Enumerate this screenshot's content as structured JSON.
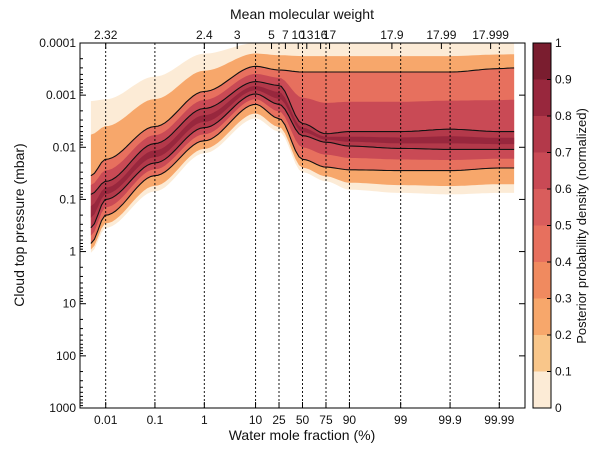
{
  "chart_data": {
    "type": "heatmap",
    "xlabel": "Water mole fraction (%)",
    "x2label": "Mean molecular weight",
    "ylabel": "Cloud top pressure (mbar)",
    "colorbar_label": "Posterior probability density (normalized)",
    "x_scale": "logit",
    "y_scale": "log",
    "y_inverted": true,
    "xlim": [
      0.003,
      99.997
    ],
    "ylim": [
      1000,
      0.0001
    ],
    "x_ticks": [
      0.01,
      0.1,
      1,
      10,
      25,
      50,
      75,
      90,
      99,
      99.9,
      99.99
    ],
    "x_tick_labels": [
      "0.01",
      "0.1",
      "1",
      "10",
      "25",
      "50",
      "75",
      "90",
      "99",
      "99.9",
      "99.99"
    ],
    "y_ticks": [
      0.0001,
      0.001,
      0.01,
      0.1,
      1,
      10,
      100,
      1000
    ],
    "y_tick_labels": [
      "0.0001",
      "0.001",
      "0.01",
      "0.1",
      "1",
      "10",
      "100",
      "1000"
    ],
    "top_ticks": [
      {
        "x": 0.01,
        "label": "2.32"
      },
      {
        "x": 1,
        "label": "2.4"
      },
      {
        "x": 4.5,
        "label": "3"
      },
      {
        "x": 19,
        "label": "5"
      },
      {
        "x": 31,
        "label": "7"
      },
      {
        "x": 45,
        "label": "10"
      },
      {
        "x": 55,
        "label": "13"
      },
      {
        "x": 70,
        "label": "16"
      },
      {
        "x": 78,
        "label": "17"
      },
      {
        "x": 98.5,
        "label": "17.9"
      },
      {
        "x": 99.85,
        "label": "17.99"
      },
      {
        "x": 99.985,
        "label": "17.999"
      }
    ],
    "dotted_guides_x": [
      0.01,
      0.1,
      1,
      10,
      25,
      50,
      75,
      90,
      99,
      99.9,
      99.99
    ],
    "colorbar": {
      "range": [
        0,
        1
      ],
      "ticks": [
        0,
        0.1,
        0.2,
        0.3,
        0.4,
        0.5,
        0.6,
        0.7,
        0.8,
        0.9,
        1
      ],
      "colors": [
        "#fcebd6",
        "#f9c68a",
        "#f7a76b",
        "#f08a5f",
        "#e7705e",
        "#d95d5c",
        "#c94a55",
        "#b3394a",
        "#98273d",
        "#7a1d2f",
        "#5e5e5e"
      ]
    },
    "contour_levels_pressure_mbar": {
      "x_nodes": [
        0.005,
        0.01,
        0.1,
        1,
        10,
        25,
        50,
        75,
        90,
        99,
        99.9,
        99.99,
        99.995
      ],
      "outer_top": [
        0.0013,
        0.0012,
        0.00044,
        0.00016,
        0.0001,
        0.0001,
        0.0001,
        0.0001,
        0.0001,
        0.0001,
        0.0001,
        0.0001,
        0.0001
      ],
      "contour_high_top": [
        0.035,
        0.017,
        0.004,
        0.00085,
        0.00028,
        0.00033,
        0.00036,
        0.00036,
        0.00036,
        0.00036,
        0.00036,
        0.00031,
        0.0003
      ],
      "contour_mid_top": [
        0.08,
        0.045,
        0.0085,
        0.0018,
        0.00055,
        0.00065,
        0.0035,
        0.0055,
        0.005,
        0.005,
        0.0045,
        0.005,
        0.005
      ],
      "contour_mid_bottom": [
        0.35,
        0.1,
        0.02,
        0.0042,
        0.00095,
        0.0015,
        0.006,
        0.008,
        0.0095,
        0.0105,
        0.011,
        0.011,
        0.011
      ],
      "contour_high_bottom": [
        0.7,
        0.2,
        0.035,
        0.0075,
        0.0015,
        0.0028,
        0.017,
        0.024,
        0.027,
        0.028,
        0.028,
        0.025,
        0.025
      ],
      "outer_bottom": [
        1.05,
        0.35,
        0.07,
        0.013,
        0.0028,
        0.005,
        0.03,
        0.045,
        0.065,
        0.075,
        0.08,
        0.075,
        0.075
      ]
    },
    "band_levels": [
      0.05,
      0.2,
      0.4,
      0.6,
      0.75,
      0.88
    ]
  }
}
